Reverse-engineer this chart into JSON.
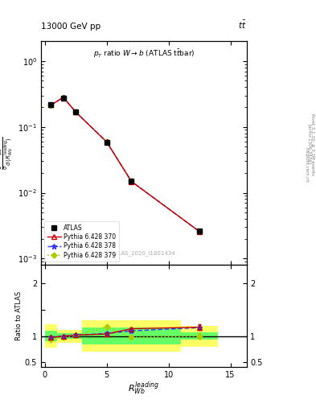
{
  "x_centers": [
    0.5,
    1.5,
    2.5,
    5.0,
    7.0,
    12.5
  ],
  "x_edges": [
    0.0,
    1.0,
    2.0,
    3.0,
    7.0,
    11.0,
    14.0
  ],
  "atlas_y": [
    0.22,
    0.275,
    0.17,
    0.058,
    0.015,
    0.0026
  ],
  "atlas_yerr": [
    0.008,
    0.008,
    0.005,
    0.003,
    0.0008,
    0.0002
  ],
  "py370_y": [
    0.215,
    0.28,
    0.168,
    0.059,
    0.0148,
    0.00258
  ],
  "py378_y": [
    0.216,
    0.279,
    0.169,
    0.059,
    0.0149,
    0.00257
  ],
  "py379_y": [
    0.214,
    0.281,
    0.167,
    0.06,
    0.0151,
    0.00255
  ],
  "ratio_atlas_band_yellow_lo": [
    0.78,
    0.88,
    0.88,
    0.7,
    0.7,
    0.8
  ],
  "ratio_atlas_band_yellow_hi": [
    1.22,
    1.12,
    1.12,
    1.3,
    1.3,
    1.2
  ],
  "ratio_atlas_band_green_lo": [
    0.9,
    0.95,
    0.95,
    0.84,
    0.84,
    0.93
  ],
  "ratio_atlas_band_green_hi": [
    1.1,
    1.05,
    1.05,
    1.16,
    1.16,
    1.07
  ],
  "ratio_py370": [
    0.975,
    1.0,
    1.02,
    1.04,
    1.14,
    1.17
  ],
  "ratio_py378": [
    0.975,
    1.0,
    1.02,
    1.05,
    1.1,
    1.16
  ],
  "ratio_py379": [
    0.94,
    0.975,
    1.01,
    1.18,
    0.975,
    1.0
  ],
  "ratio_py370_err": [
    0.015,
    0.012,
    0.012,
    0.025,
    0.025,
    0.05
  ],
  "ratio_py378_err": [
    0.015,
    0.012,
    0.012,
    0.025,
    0.025,
    0.05
  ],
  "ratio_py379_err": [
    0.015,
    0.012,
    0.012,
    0.025,
    0.025,
    0.05
  ],
  "ylim_main": [
    0.0008,
    2.0
  ],
  "ylim_ratio": [
    0.42,
    2.35
  ],
  "xlim": [
    -0.3,
    16.3
  ],
  "color_370": "#cc0000",
  "color_378": "#3333ff",
  "color_379": "#aacc00",
  "color_atlas": "black",
  "color_band_yellow": "#ffff66",
  "color_band_green": "#66ff66"
}
